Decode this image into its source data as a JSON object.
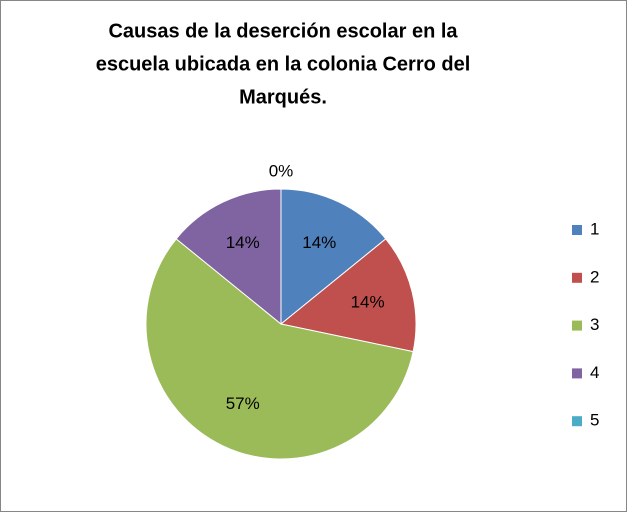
{
  "chart_data": {
    "type": "pie",
    "title": [
      "Causas de la deserción escolar en la",
      "escuela  ubicada en la colonia Cerro del",
      "Marqués."
    ],
    "categories": [
      "1",
      "2",
      "3",
      "4",
      "5"
    ],
    "values": [
      14,
      14,
      57,
      14,
      0
    ],
    "value_labels": [
      "14%",
      "14%",
      "57%",
      "14%",
      "0%"
    ],
    "colors": [
      "#4f81bd",
      "#c0504d",
      "#9bbb59",
      "#8064a2",
      "#4bacc6"
    ],
    "legend": "right"
  }
}
